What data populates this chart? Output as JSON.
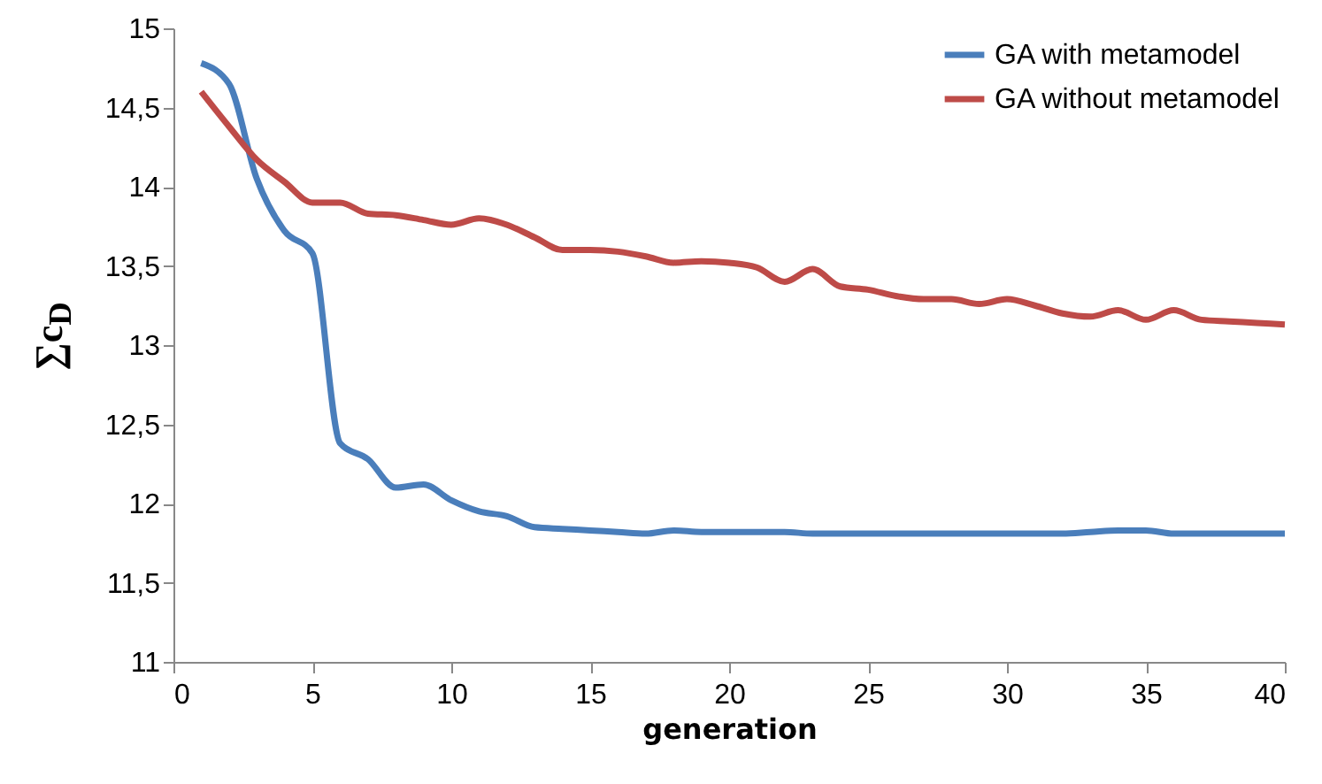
{
  "chart_data": {
    "type": "line",
    "xlabel": "generation",
    "ylabel": "∑c$_{D}$",
    "x": [
      1,
      2,
      3,
      4,
      5,
      6,
      7,
      8,
      9,
      10,
      11,
      12,
      13,
      14,
      15,
      16,
      17,
      18,
      19,
      20,
      21,
      22,
      23,
      24,
      25,
      26,
      27,
      28,
      29,
      30,
      31,
      32,
      33,
      34,
      35,
      36,
      37,
      38,
      39,
      40
    ],
    "series": [
      {
        "name": "GA with metamodel",
        "color": "#4a7ebb",
        "values": [
          14.78,
          14.65,
          14.05,
          13.72,
          13.58,
          12.38,
          12.28,
          12.1,
          12.12,
          12.02,
          11.95,
          11.92,
          11.85,
          11.84,
          11.83,
          11.82,
          11.81,
          11.83,
          11.82,
          11.82,
          11.82,
          11.82,
          11.81,
          11.81,
          11.81,
          11.81,
          11.81,
          11.81,
          11.81,
          11.81,
          11.81,
          11.81,
          11.82,
          11.83,
          11.83,
          11.81,
          11.81,
          11.81,
          11.81,
          11.81
        ]
      },
      {
        "name": "GA without metamodel",
        "color": "#be4b48",
        "values": [
          14.6,
          14.38,
          14.17,
          14.03,
          13.9,
          13.9,
          13.83,
          13.82,
          13.79,
          13.76,
          13.8,
          13.76,
          13.68,
          13.6,
          13.6,
          13.59,
          13.56,
          13.52,
          13.53,
          13.52,
          13.49,
          13.4,
          13.48,
          13.37,
          13.35,
          13.31,
          13.29,
          13.29,
          13.26,
          13.29,
          13.25,
          13.2,
          13.18,
          13.22,
          13.16,
          13.22,
          13.16,
          13.15,
          13.14,
          13.13
        ]
      }
    ],
    "xlim": [
      0,
      40
    ],
    "xticks": [
      0,
      5,
      10,
      15,
      20,
      25,
      30,
      35,
      40
    ],
    "ylim": [
      11,
      15
    ],
    "yticks": [
      11,
      {
        "value": 11.5,
        "label": "11,5"
      },
      12,
      {
        "value": 12.5,
        "label": "12,5"
      },
      13,
      {
        "value": 13.5,
        "label": "13,5"
      },
      14,
      {
        "value": 14.5,
        "label": "14,5"
      },
      15
    ],
    "grid": false,
    "legend": "top right",
    "marker": "none",
    "line_style": "solid"
  }
}
